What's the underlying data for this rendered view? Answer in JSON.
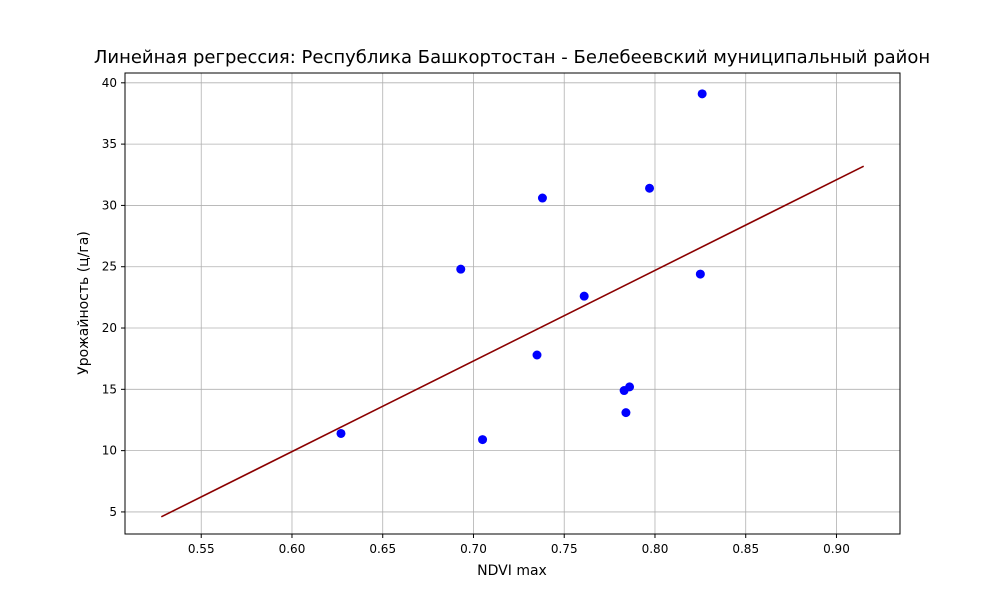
{
  "chart_data": {
    "type": "scatter",
    "title": "Линейная регрессия: Республика Башкортостан - Белебеевский муниципальный район",
    "xlabel": "NDVI max",
    "ylabel": "Урожайность (ц/га)",
    "xlim": [
      0.508,
      0.935
    ],
    "ylim": [
      3.2,
      40.8
    ],
    "xticks": [
      0.55,
      0.6,
      0.65,
      0.7,
      0.75,
      0.8,
      0.85,
      0.9
    ],
    "xtick_labels": [
      "0.55",
      "0.60",
      "0.65",
      "0.70",
      "0.75",
      "0.80",
      "0.85",
      "0.90"
    ],
    "yticks": [
      5,
      10,
      15,
      20,
      25,
      30,
      35,
      40
    ],
    "ytick_labels": [
      "5",
      "10",
      "15",
      "20",
      "25",
      "30",
      "35",
      "40"
    ],
    "grid": true,
    "series": [
      {
        "type": "scatter",
        "color": "#0000ff",
        "points": [
          {
            "x": 0.627,
            "y": 11.4
          },
          {
            "x": 0.693,
            "y": 24.8
          },
          {
            "x": 0.705,
            "y": 10.9
          },
          {
            "x": 0.735,
            "y": 17.8
          },
          {
            "x": 0.738,
            "y": 30.6
          },
          {
            "x": 0.761,
            "y": 22.6
          },
          {
            "x": 0.783,
            "y": 14.9
          },
          {
            "x": 0.784,
            "y": 13.1
          },
          {
            "x": 0.786,
            "y": 15.2
          },
          {
            "x": 0.797,
            "y": 31.4
          },
          {
            "x": 0.825,
            "y": 24.4
          },
          {
            "x": 0.826,
            "y": 39.1
          }
        ]
      },
      {
        "type": "line",
        "color": "#8b0000",
        "points": [
          {
            "x": 0.528,
            "y": 4.6
          },
          {
            "x": 0.915,
            "y": 33.2
          }
        ]
      }
    ]
  }
}
